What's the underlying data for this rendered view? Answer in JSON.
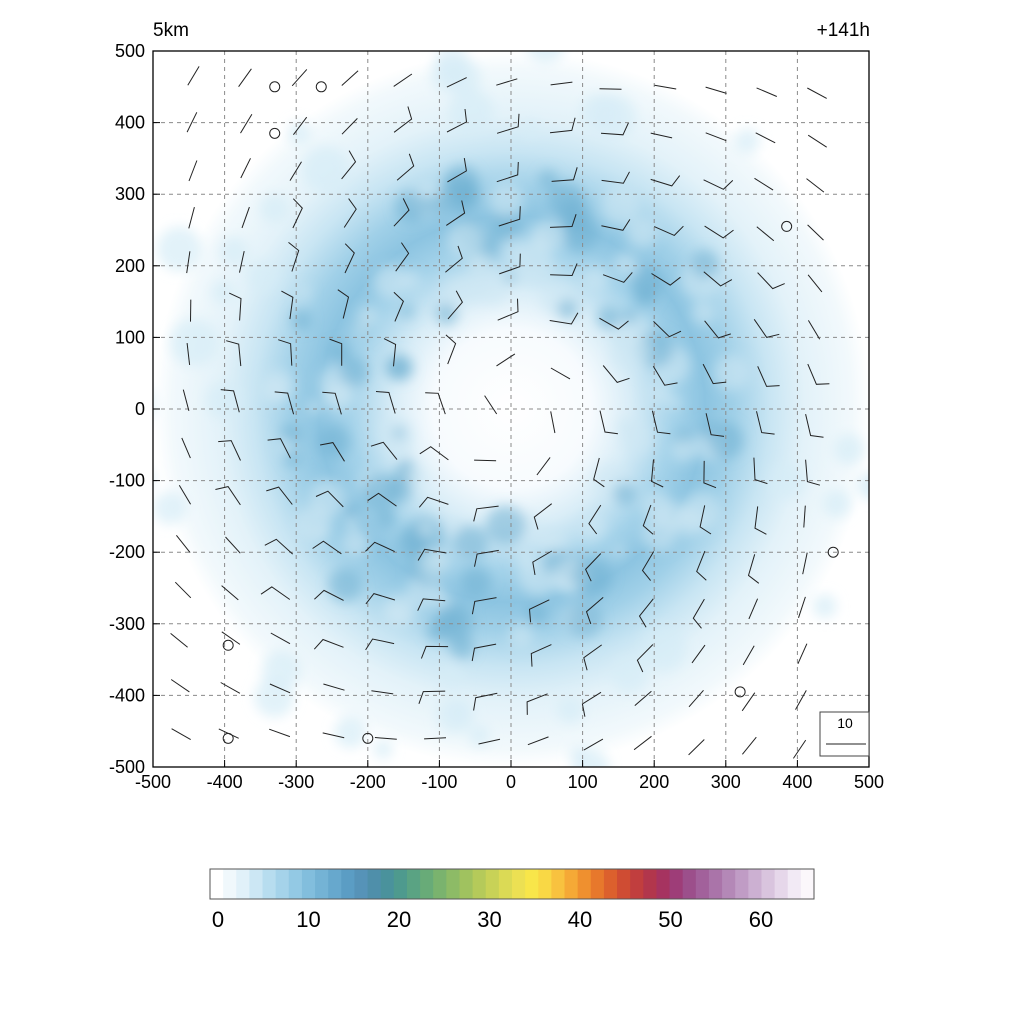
{
  "chart_data": {
    "type": "heatmap",
    "title": "",
    "top_left_label": "5km",
    "top_right_label": "+141h",
    "xlabel": "",
    "ylabel": "",
    "xlim": [
      -500,
      500
    ],
    "ylim": [
      -500,
      500
    ],
    "x_ticks": [
      "-500",
      "-400",
      "-300",
      "-200",
      "-100",
      "0",
      "100",
      "200",
      "300",
      "400",
      "500"
    ],
    "y_ticks": [
      "500",
      "400",
      "300",
      "200",
      "100",
      "0",
      "-100",
      "-200",
      "-300",
      "-400",
      "-500"
    ],
    "grid": true,
    "field": {
      "description_shape": "annular ring",
      "center": [
        0,
        0
      ],
      "ring_radius": 250,
      "ring_width": 130,
      "peak_value": 14,
      "background_value": 2
    },
    "wind_barbs": {
      "spacing": 50,
      "reference_value": "10",
      "reference_position": "bottom-right"
    },
    "calm_markers": [
      [
        -330,
        450
      ],
      [
        -265,
        450
      ],
      [
        -330,
        385
      ],
      [
        385,
        255
      ],
      [
        450,
        -200
      ],
      [
        -395,
        -330
      ],
      [
        320,
        -395
      ],
      [
        -395,
        -460
      ],
      [
        -200,
        -460
      ]
    ],
    "colorbar": {
      "tick_labels": [
        "0",
        "10",
        "20",
        "30",
        "40",
        "50",
        "60"
      ],
      "min": 0,
      "max": 65,
      "colors": [
        "#ffffff",
        "#f0f8fc",
        "#e1f1f9",
        "#cce7f4",
        "#b7ddef",
        "#a5d3ea",
        "#93c9e4",
        "#82bedd",
        "#74b3d5",
        "#67a8cd",
        "#5b9dc4",
        "#5693b8",
        "#4f8faa",
        "#4a929c",
        "#4e9a8e",
        "#5aa383",
        "#68ab78",
        "#7ab36e",
        "#8dbb66",
        "#a0c25f",
        "#b5ca5a",
        "#c8d257",
        "#dbda55",
        "#ece053",
        "#f8e64a",
        "#f9d845",
        "#f8c23f",
        "#f5a936",
        "#ef902f",
        "#e7782c",
        "#dc602d",
        "#cf4c33",
        "#c13e3e",
        "#b2364c",
        "#a63360",
        "#9e3d78",
        "#9c4f8b",
        "#a2619b",
        "#aa74a9",
        "#b488b7",
        "#c09cc5",
        "#ccb0d2",
        "#d9c4de",
        "#e6d7ea",
        "#f2eaf5",
        "#fbf7fb"
      ]
    }
  }
}
